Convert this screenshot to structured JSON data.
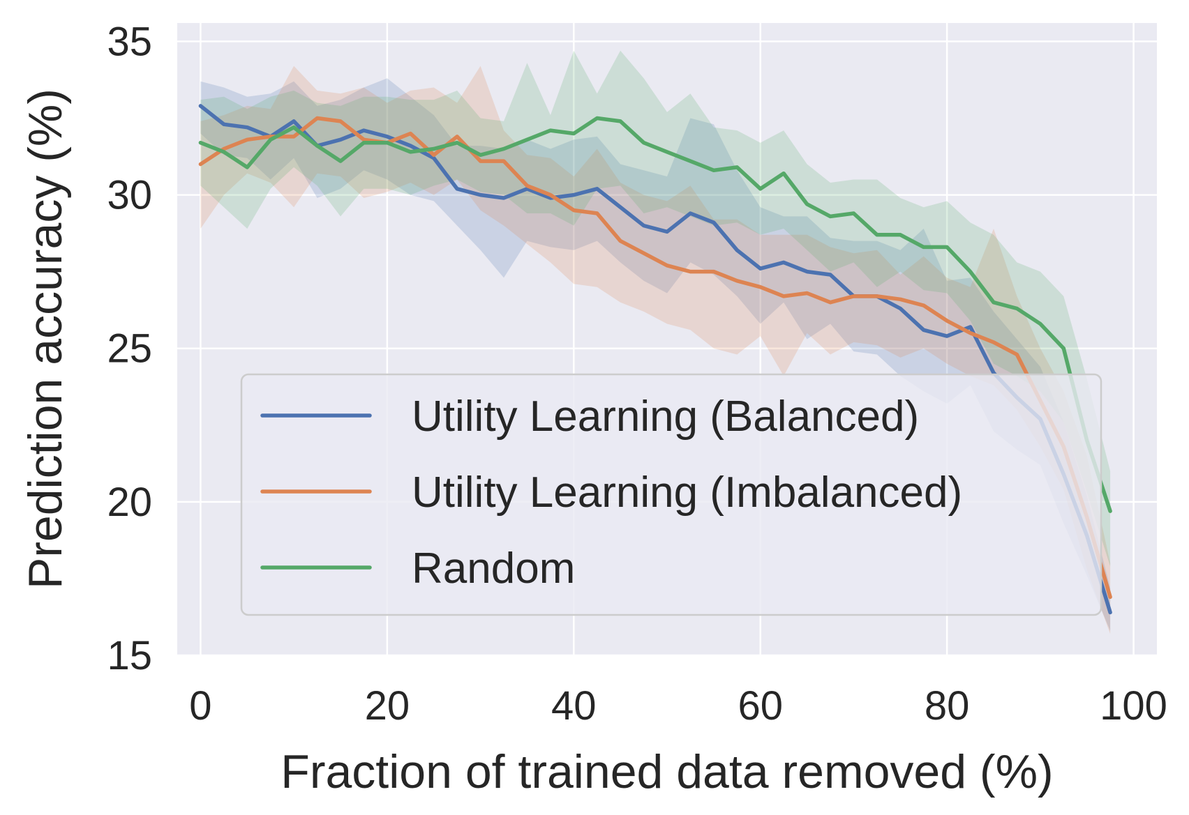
{
  "chart_data": {
    "type": "line",
    "xlabel": "Fraction of trained data removed (%)",
    "ylabel": "Prediction accuracy (%)",
    "xlim": [
      -2.5,
      102.5
    ],
    "ylim": [
      15,
      35.6
    ],
    "xticks": [
      0,
      20,
      40,
      60,
      80,
      100
    ],
    "yticks": [
      15,
      20,
      25,
      30,
      35
    ],
    "grid": true,
    "legend_placement": "lower-center",
    "x": [
      0,
      2.5,
      5,
      7.5,
      10,
      12.5,
      15,
      17.5,
      20,
      22.5,
      25,
      27.5,
      30,
      32.5,
      35,
      37.5,
      40,
      42.5,
      45,
      47.5,
      50,
      52.5,
      55,
      57.5,
      60,
      62.5,
      65,
      67.5,
      70,
      72.5,
      75,
      77.5,
      80,
      82.5,
      85,
      87.5,
      90,
      92.5,
      95,
      97.5
    ],
    "series": [
      {
        "name": "Utility Learning (Balanced)",
        "color": "#4c72b0",
        "values": [
          32.9,
          32.3,
          32.2,
          31.9,
          32.4,
          31.6,
          31.8,
          32.1,
          31.9,
          31.6,
          31.2,
          30.2,
          30.0,
          29.9,
          30.2,
          29.9,
          30.0,
          30.2,
          29.6,
          29.0,
          28.8,
          29.4,
          29.1,
          28.2,
          27.6,
          27.8,
          27.5,
          27.4,
          26.7,
          26.7,
          26.3,
          25.6,
          25.4,
          25.7,
          24.2,
          23.4,
          22.7,
          20.9,
          18.9,
          16.4
        ],
        "lower": [
          32.0,
          31.3,
          31.2,
          30.5,
          31.2,
          29.9,
          30.2,
          30.8,
          30.5,
          30.0,
          29.8,
          29.0,
          28.2,
          27.3,
          28.5,
          28.3,
          28.2,
          28.5,
          27.8,
          27.2,
          26.8,
          27.8,
          27.4,
          26.7,
          25.8,
          26.5,
          25.3,
          25.8,
          24.9,
          24.8,
          24.1,
          23.6,
          23.2,
          23.8,
          22.3,
          21.7,
          21.2,
          19.3,
          17.6,
          15.8
        ],
        "upper": [
          33.7,
          33.5,
          33.2,
          33.3,
          33.7,
          32.9,
          33.1,
          33.5,
          33.8,
          33.2,
          32.6,
          31.6,
          31.6,
          31.5,
          31.8,
          31.5,
          31.8,
          31.9,
          31.0,
          30.8,
          30.6,
          32.5,
          32.3,
          30.8,
          29.6,
          29.3,
          29.3,
          28.6,
          28.5,
          28.5,
          28.2,
          28.9,
          27.2,
          27.3,
          26.2,
          25.3,
          24.4,
          22.6,
          20.2,
          17.2
        ]
      },
      {
        "name": "Utility Learning (Imbalanced)",
        "color": "#dd8452",
        "values": [
          31.0,
          31.5,
          31.8,
          31.9,
          31.9,
          32.5,
          32.4,
          31.8,
          31.7,
          32.0,
          31.3,
          31.9,
          31.1,
          31.1,
          30.3,
          30.0,
          29.5,
          29.4,
          28.5,
          28.1,
          27.7,
          27.5,
          27.5,
          27.2,
          27.0,
          26.7,
          26.8,
          26.5,
          26.7,
          26.7,
          26.6,
          26.4,
          25.9,
          25.5,
          25.2,
          24.8,
          23.3,
          21.8,
          19.5,
          16.9
        ],
        "lower": [
          28.9,
          30.0,
          30.7,
          30.4,
          29.6,
          30.7,
          30.6,
          29.9,
          30.1,
          30.4,
          30.0,
          30.5,
          29.5,
          29.0,
          28.4,
          27.8,
          27.1,
          27.0,
          26.5,
          26.2,
          25.8,
          25.6,
          25.0,
          24.8,
          25.4,
          24.1,
          25.5,
          24.8,
          25.2,
          25.1,
          24.7,
          25.0,
          24.5,
          24.1,
          23.8,
          23.0,
          21.8,
          20.4,
          17.8,
          15.7
        ],
        "upper": [
          32.4,
          32.6,
          32.9,
          32.8,
          34.2,
          33.4,
          33.3,
          33.5,
          33.0,
          33.4,
          33.5,
          33.0,
          34.2,
          32.1,
          31.3,
          31.2,
          30.6,
          31.5,
          30.4,
          30.0,
          29.8,
          30.3,
          29.2,
          29.2,
          28.7,
          28.7,
          28.7,
          28.3,
          28.1,
          28.2,
          27.4,
          28.0,
          27.3,
          27.0,
          28.9,
          26.7,
          25.0,
          23.6,
          21.5,
          18.0
        ]
      },
      {
        "name": "Random",
        "color": "#55a868",
        "values": [
          31.7,
          31.4,
          30.9,
          31.8,
          32.2,
          31.6,
          31.1,
          31.7,
          31.7,
          31.4,
          31.5,
          31.7,
          31.3,
          31.5,
          31.8,
          32.1,
          32.0,
          32.5,
          32.4,
          31.7,
          31.4,
          31.1,
          30.8,
          30.9,
          30.2,
          30.7,
          29.7,
          29.3,
          29.4,
          28.7,
          28.7,
          28.3,
          28.3,
          27.5,
          26.5,
          26.3,
          25.8,
          25.0,
          22.0,
          19.7
        ],
        "lower": [
          30.3,
          29.6,
          28.9,
          30.2,
          30.9,
          30.3,
          29.3,
          30.2,
          30.2,
          30.0,
          30.3,
          30.5,
          30.1,
          30.0,
          29.4,
          29.4,
          29.0,
          30.2,
          30.3,
          29.4,
          29.6,
          29.3,
          29.0,
          29.1,
          28.7,
          28.9,
          28.2,
          27.5,
          27.8,
          27.0,
          27.5,
          26.9,
          26.8,
          25.9,
          24.5,
          24.1,
          23.6,
          22.6,
          20.3,
          17.9
        ],
        "upper": [
          33.1,
          33.2,
          32.8,
          33.2,
          33.4,
          33.0,
          32.9,
          33.2,
          33.2,
          33.1,
          33.1,
          33.4,
          32.5,
          32.4,
          34.3,
          32.6,
          34.7,
          33.3,
          34.7,
          33.8,
          32.7,
          33.3,
          32.2,
          32.1,
          31.7,
          32.1,
          31.0,
          30.4,
          30.5,
          30.5,
          29.9,
          29.6,
          29.8,
          29.1,
          28.7,
          27.8,
          27.5,
          26.7,
          24.0,
          21.0
        ]
      }
    ]
  }
}
